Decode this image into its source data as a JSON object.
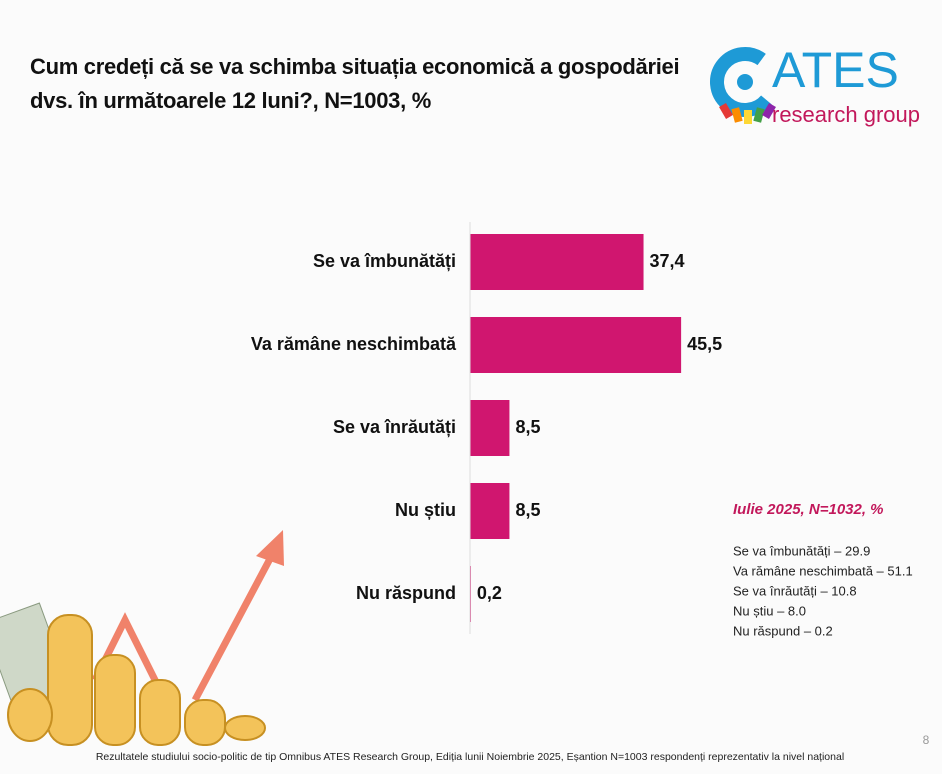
{
  "chart_data": {
    "type": "bar",
    "orientation": "horizontal",
    "title": "Cum credeți că se va schimba situația economică a gospodăriei dvs. în următoarele 12 luni?, N=1003, %",
    "categories": [
      "Se va îmbunătăți",
      "Va rămâne neschimbată",
      "Se va înrăutăți",
      "Nu știu",
      "Nu răspund"
    ],
    "values": [
      37.4,
      45.5,
      8.5,
      8.5,
      0.2
    ],
    "value_labels": [
      "37,4",
      "45,5",
      "8,5",
      "8,5",
      "0,2"
    ],
    "color": "#d0166f"
  },
  "logo": {
    "name": "ATES",
    "tagline": "research group"
  },
  "side_note": {
    "title": "Iulie 2025, N=1032, %",
    "items": [
      "Se va îmbunătăți – 29.9",
      "Va rămâne neschimbată – 51.1",
      "Se va înrăutăți – 10.8",
      "Nu știu – 8.0",
      "Nu răspund – 0.2"
    ]
  },
  "footer": "Rezultatele studiului socio-politic de tip Omnibus ATES Research Group, Ediția lunii Noiembrie 2025, Eșantion N=1003 respondenți reprezentativ la nivel național",
  "page_number": "8"
}
